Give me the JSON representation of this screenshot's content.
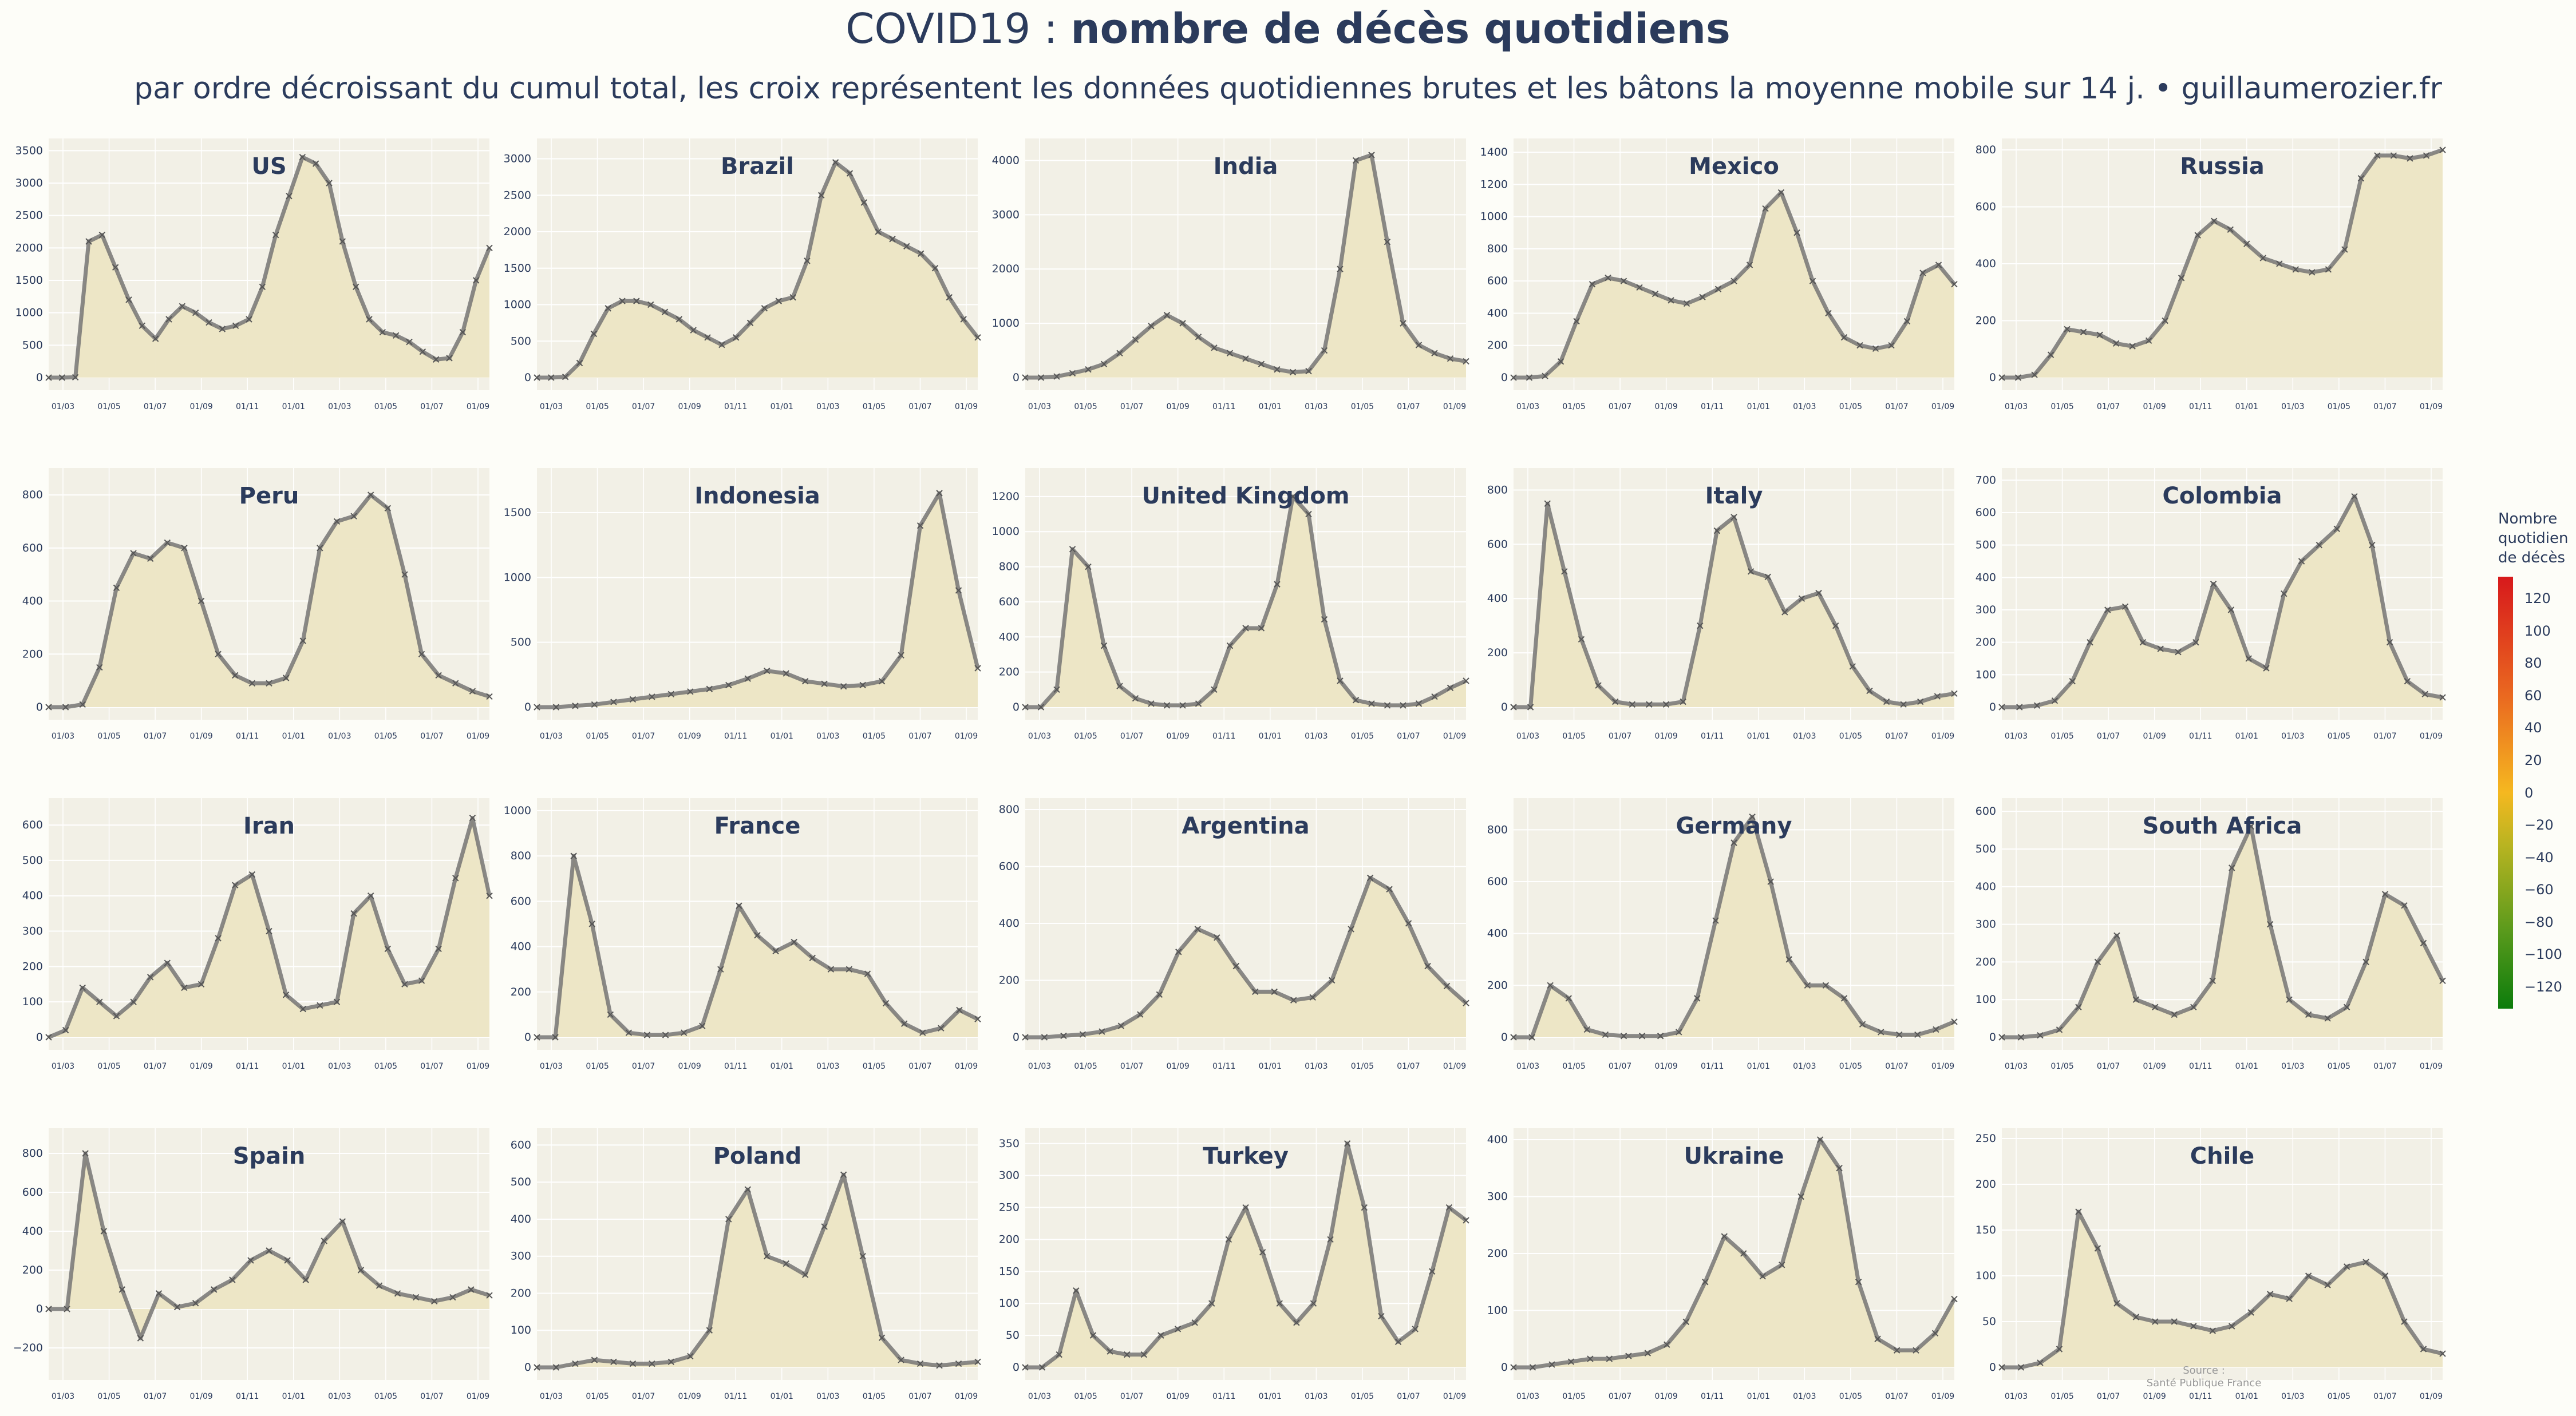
{
  "header": {
    "title_light": "COVID19 :",
    "title_bold": "nombre de décès quotidiens",
    "subtitle": "par ordre décroissant du cumul total, les croix représentent les données quotidiennes brutes et les bâtons la moyenne mobile sur 14 j.  •  guillaumerozier.fr"
  },
  "colors": {
    "plot_bg": "#f2f0e6",
    "fill": "#ece5c4",
    "line": "#6e6e6e",
    "title": "#2b3b5c"
  },
  "legend": {
    "title_lines": [
      "Nombre",
      "quotidien",
      "de décès"
    ],
    "ticks": [
      "120",
      "100",
      "80",
      "60",
      "40",
      "20",
      "0",
      "−20",
      "−40",
      "−60",
      "−80",
      "−100",
      "−120"
    ]
  },
  "source": {
    "line1": "Source :",
    "line2": "Santé Publique France"
  },
  "chart_data": [
    {
      "type": "area",
      "title": "US",
      "x_ticks": [
        "01/03",
        "01/05",
        "01/07",
        "01/09",
        "01/11",
        "01/01",
        "01/03",
        "01/05",
        "01/07",
        "01/09"
      ],
      "y_ticks": [
        0,
        500,
        1000,
        1500,
        2000,
        2500,
        3000,
        3500
      ],
      "ylim": [
        0,
        3600
      ],
      "series": [
        {
          "values": [
            0,
            0,
            5,
            2100,
            2200,
            1700,
            1200,
            800,
            600,
            900,
            1100,
            1000,
            850,
            750,
            800,
            900,
            1400,
            2200,
            2800,
            3400,
            3300,
            3000,
            2100,
            1400,
            900,
            700,
            650,
            550,
            400,
            280,
            300,
            700,
            1500,
            2000
          ]
        }
      ]
    },
    {
      "type": "area",
      "title": "Brazil",
      "x_ticks": [
        "01/03",
        "01/05",
        "01/07",
        "01/09",
        "01/11",
        "01/01",
        "01/03",
        "01/05",
        "01/07",
        "01/09"
      ],
      "y_ticks": [
        0,
        500,
        1000,
        1500,
        2000,
        2500,
        3000
      ],
      "ylim": [
        0,
        3200
      ],
      "series": [
        {
          "values": [
            0,
            0,
            10,
            200,
            600,
            950,
            1050,
            1050,
            1000,
            900,
            800,
            650,
            550,
            450,
            550,
            750,
            950,
            1050,
            1100,
            1600,
            2500,
            2950,
            2800,
            2400,
            2000,
            1900,
            1800,
            1700,
            1500,
            1100,
            800,
            550
          ]
        }
      ]
    },
    {
      "type": "area",
      "title": "India",
      "x_ticks": [
        "01/03",
        "01/05",
        "01/07",
        "01/09",
        "01/11",
        "01/01",
        "01/03",
        "01/05",
        "01/07",
        "01/09"
      ],
      "y_ticks": [
        0,
        1000,
        2000,
        3000,
        4000
      ],
      "ylim": [
        0,
        4300
      ],
      "series": [
        {
          "values": [
            0,
            0,
            20,
            80,
            150,
            250,
            450,
            700,
            950,
            1150,
            1000,
            750,
            550,
            450,
            350,
            250,
            150,
            100,
            120,
            500,
            2000,
            4000,
            4100,
            2500,
            1000,
            600,
            450,
            350,
            300
          ]
        }
      ]
    },
    {
      "type": "area",
      "title": "Mexico",
      "x_ticks": [
        "01/03",
        "01/05",
        "01/07",
        "01/09",
        "01/11",
        "01/01",
        "01/03",
        "01/05",
        "01/07",
        "01/09"
      ],
      "y_ticks": [
        0,
        200,
        400,
        600,
        800,
        1000,
        1200,
        1400
      ],
      "ylim": [
        0,
        1450
      ],
      "series": [
        {
          "values": [
            0,
            0,
            10,
            100,
            350,
            580,
            620,
            600,
            560,
            520,
            480,
            460,
            500,
            550,
            600,
            700,
            1050,
            1150,
            900,
            600,
            400,
            250,
            200,
            180,
            200,
            350,
            650,
            700,
            580
          ]
        }
      ]
    },
    {
      "type": "area",
      "title": "Russia",
      "x_ticks": [
        "01/03",
        "01/05",
        "01/07",
        "01/09",
        "01/11",
        "01/01",
        "01/03",
        "01/05",
        "01/07",
        "01/09"
      ],
      "y_ticks": [
        0,
        200,
        400,
        600,
        800
      ],
      "ylim": [
        0,
        820
      ],
      "series": [
        {
          "values": [
            0,
            0,
            10,
            80,
            170,
            160,
            150,
            120,
            110,
            130,
            200,
            350,
            500,
            550,
            520,
            470,
            420,
            400,
            380,
            370,
            380,
            450,
            700,
            780,
            780,
            770,
            780,
            800
          ]
        }
      ]
    },
    {
      "type": "area",
      "title": "Peru",
      "x_ticks": [
        "01/03",
        "01/05",
        "01/07",
        "01/09",
        "01/11",
        "01/01",
        "01/03",
        "01/05",
        "01/07",
        "01/09"
      ],
      "y_ticks": [
        0,
        200,
        400,
        600,
        800
      ],
      "ylim": [
        0,
        880
      ],
      "series": [
        {
          "values": [
            0,
            0,
            10,
            150,
            450,
            580,
            560,
            620,
            600,
            400,
            200,
            120,
            90,
            90,
            110,
            250,
            600,
            700,
            720,
            800,
            750,
            500,
            200,
            120,
            90,
            60,
            40
          ]
        }
      ]
    },
    {
      "type": "area",
      "title": "Indonesia",
      "x_ticks": [
        "01/03",
        "01/05",
        "01/07",
        "01/09",
        "01/11",
        "01/01",
        "01/03",
        "01/05",
        "01/07",
        "01/09"
      ],
      "y_ticks": [
        0,
        500,
        1000,
        1500
      ],
      "ylim": [
        0,
        1800
      ],
      "series": [
        {
          "values": [
            0,
            0,
            10,
            20,
            40,
            60,
            80,
            100,
            120,
            140,
            170,
            220,
            280,
            260,
            200,
            180,
            160,
            170,
            200,
            400,
            1400,
            1650,
            900,
            300
          ]
        }
      ]
    },
    {
      "type": "area",
      "title": "United Kingdom",
      "x_ticks": [
        "01/03",
        "01/05",
        "01/07",
        "01/09",
        "01/11",
        "01/01",
        "01/03",
        "01/05",
        "01/07",
        "01/09"
      ],
      "y_ticks": [
        0,
        200,
        400,
        600,
        800,
        1000,
        1200
      ],
      "ylim": [
        0,
        1330
      ],
      "series": [
        {
          "values": [
            0,
            0,
            100,
            900,
            800,
            350,
            120,
            50,
            20,
            10,
            10,
            20,
            100,
            350,
            450,
            450,
            700,
            1200,
            1100,
            500,
            150,
            40,
            20,
            10,
            10,
            20,
            60,
            110,
            150
          ]
        }
      ]
    },
    {
      "type": "area",
      "title": "Italy",
      "x_ticks": [
        "01/03",
        "01/05",
        "01/07",
        "01/09",
        "01/11",
        "01/01",
        "01/03",
        "01/05",
        "01/07",
        "01/09"
      ],
      "y_ticks": [
        0,
        200,
        400,
        600,
        800
      ],
      "ylim": [
        0,
        860
      ],
      "series": [
        {
          "values": [
            0,
            0,
            750,
            500,
            250,
            80,
            20,
            10,
            10,
            10,
            20,
            300,
            650,
            700,
            500,
            480,
            350,
            400,
            420,
            300,
            150,
            60,
            20,
            10,
            20,
            40,
            50
          ]
        }
      ]
    },
    {
      "type": "area",
      "title": "Colombia",
      "x_ticks": [
        "01/03",
        "01/05",
        "01/07",
        "01/09",
        "01/11",
        "01/01",
        "01/03",
        "01/05",
        "01/07",
        "01/09"
      ],
      "y_ticks": [
        0,
        100,
        200,
        300,
        400,
        500,
        600,
        700
      ],
      "ylim": [
        0,
        720
      ],
      "series": [
        {
          "values": [
            0,
            0,
            5,
            20,
            80,
            200,
            300,
            310,
            200,
            180,
            170,
            200,
            380,
            300,
            150,
            120,
            350,
            450,
            500,
            550,
            650,
            500,
            200,
            80,
            40,
            30
          ]
        }
      ]
    },
    {
      "type": "area",
      "title": "Iran",
      "x_ticks": [
        "01/03",
        "01/05",
        "01/07",
        "01/09",
        "01/11",
        "01/01",
        "01/03",
        "01/05",
        "01/07",
        "01/09"
      ],
      "y_ticks": [
        0,
        100,
        200,
        300,
        400,
        500,
        600
      ],
      "ylim": [
        0,
        660
      ],
      "series": [
        {
          "values": [
            0,
            20,
            140,
            100,
            60,
            100,
            170,
            210,
            140,
            150,
            280,
            430,
            460,
            300,
            120,
            80,
            90,
            100,
            350,
            400,
            250,
            150,
            160,
            250,
            450,
            620,
            400
          ]
        }
      ]
    },
    {
      "type": "area",
      "title": "France",
      "x_ticks": [
        "01/03",
        "01/05",
        "01/07",
        "01/09",
        "01/11",
        "01/01",
        "01/03",
        "01/05",
        "01/07",
        "01/09"
      ],
      "y_ticks": [
        0,
        200,
        400,
        600,
        800,
        1000
      ],
      "ylim": [
        0,
        1030
      ],
      "series": [
        {
          "values": [
            0,
            0,
            800,
            500,
            100,
            20,
            10,
            10,
            20,
            50,
            300,
            580,
            450,
            380,
            420,
            350,
            300,
            300,
            280,
            150,
            60,
            20,
            40,
            120,
            80
          ]
        }
      ]
    },
    {
      "type": "area",
      "title": "Argentina",
      "x_ticks": [
        "01/03",
        "01/05",
        "01/07",
        "01/09",
        "01/11",
        "01/01",
        "01/03",
        "01/05",
        "01/07",
        "01/09"
      ],
      "y_ticks": [
        0,
        200,
        400,
        600,
        800
      ],
      "ylim": [
        0,
        820
      ],
      "series": [
        {
          "values": [
            0,
            0,
            5,
            10,
            20,
            40,
            80,
            150,
            300,
            380,
            350,
            250,
            160,
            160,
            130,
            140,
            200,
            380,
            560,
            520,
            400,
            250,
            180,
            120
          ]
        }
      ]
    },
    {
      "type": "area",
      "title": "Germany",
      "x_ticks": [
        "01/03",
        "01/05",
        "01/07",
        "01/09",
        "01/11",
        "01/01",
        "01/03",
        "01/05",
        "01/07",
        "01/09"
      ],
      "y_ticks": [
        0,
        200,
        400,
        600,
        800
      ],
      "ylim": [
        0,
        900
      ],
      "series": [
        {
          "values": [
            0,
            0,
            200,
            150,
            30,
            10,
            5,
            5,
            5,
            20,
            150,
            450,
            750,
            850,
            600,
            300,
            200,
            200,
            150,
            50,
            20,
            10,
            10,
            30,
            60
          ]
        }
      ]
    },
    {
      "type": "area",
      "title": "South Africa",
      "x_ticks": [
        "01/03",
        "01/05",
        "01/07",
        "01/09",
        "01/11",
        "01/01",
        "01/03",
        "01/05",
        "01/07",
        "01/09"
      ],
      "y_ticks": [
        0,
        100,
        200,
        300,
        400,
        500,
        600
      ],
      "ylim": [
        0,
        620
      ],
      "series": [
        {
          "values": [
            0,
            0,
            5,
            20,
            80,
            200,
            270,
            100,
            80,
            60,
            80,
            150,
            450,
            560,
            300,
            100,
            60,
            50,
            80,
            200,
            380,
            350,
            250,
            150
          ]
        }
      ]
    },
    {
      "type": "area",
      "title": "Spain",
      "x_ticks": [
        "01/03",
        "01/05",
        "01/07",
        "01/09",
        "01/11",
        "01/01",
        "01/03",
        "01/05",
        "01/07",
        "01/09"
      ],
      "y_ticks": [
        -200,
        0,
        200,
        400,
        600,
        800
      ],
      "ylim": [
        -300,
        900
      ],
      "series": [
        {
          "values": [
            0,
            0,
            800,
            400,
            100,
            -150,
            80,
            10,
            30,
            100,
            150,
            250,
            300,
            250,
            150,
            350,
            450,
            200,
            120,
            80,
            60,
            40,
            60,
            100,
            70
          ]
        }
      ]
    },
    {
      "type": "area",
      "title": "Poland",
      "x_ticks": [
        "01/03",
        "01/05",
        "01/07",
        "01/09",
        "01/11",
        "01/01",
        "01/03",
        "01/05",
        "01/07",
        "01/09"
      ],
      "y_ticks": [
        0,
        100,
        200,
        300,
        400,
        500,
        600
      ],
      "ylim": [
        0,
        630
      ],
      "series": [
        {
          "values": [
            0,
            0,
            10,
            20,
            15,
            10,
            10,
            15,
            30,
            100,
            400,
            480,
            300,
            280,
            250,
            380,
            520,
            300,
            80,
            20,
            10,
            5,
            10,
            15
          ]
        }
      ]
    },
    {
      "type": "area",
      "title": "Turkey",
      "x_ticks": [
        "01/03",
        "01/05",
        "01/07",
        "01/09",
        "01/11",
        "01/01",
        "01/03",
        "01/05",
        "01/07",
        "01/09"
      ],
      "y_ticks": [
        0,
        50,
        100,
        150,
        200,
        250,
        300,
        350
      ],
      "ylim": [
        0,
        365
      ],
      "series": [
        {
          "values": [
            0,
            0,
            20,
            120,
            50,
            25,
            20,
            20,
            50,
            60,
            70,
            100,
            200,
            250,
            180,
            100,
            70,
            100,
            200,
            350,
            250,
            80,
            40,
            60,
            150,
            250,
            230
          ]
        }
      ]
    },
    {
      "type": "area",
      "title": "Ukraine",
      "x_ticks": [
        "01/03",
        "01/05",
        "01/07",
        "01/09",
        "01/11",
        "01/01",
        "01/03",
        "01/05",
        "01/07",
        "01/09"
      ],
      "y_ticks": [
        0,
        100,
        200,
        300,
        400
      ],
      "ylim": [
        0,
        410
      ],
      "series": [
        {
          "values": [
            0,
            0,
            5,
            10,
            15,
            15,
            20,
            25,
            40,
            80,
            150,
            230,
            200,
            160,
            180,
            300,
            400,
            350,
            150,
            50,
            30,
            30,
            60,
            120
          ]
        }
      ]
    },
    {
      "type": "area",
      "title": "Chile",
      "x_ticks": [
        "01/03",
        "01/05",
        "01/07",
        "01/09",
        "01/11",
        "01/01",
        "01/03",
        "01/05",
        "01/07",
        "01/09"
      ],
      "y_ticks": [
        0,
        50,
        100,
        150,
        200,
        250
      ],
      "ylim": [
        0,
        255
      ],
      "series": [
        {
          "values": [
            0,
            0,
            5,
            20,
            170,
            130,
            70,
            55,
            50,
            50,
            45,
            40,
            45,
            60,
            80,
            75,
            100,
            90,
            110,
            115,
            100,
            50,
            20,
            15
          ]
        }
      ]
    }
  ]
}
